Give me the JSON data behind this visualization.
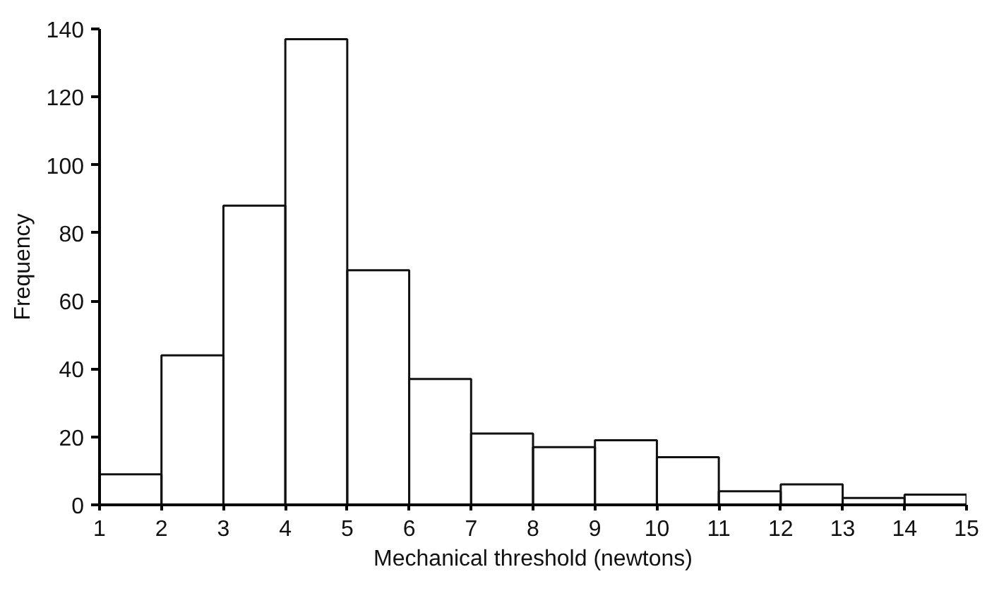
{
  "chart_data": {
    "type": "histogram",
    "xlabel": "Mechanical threshold (newtons)",
    "ylabel": "Frequency",
    "bins": [
      1,
      2,
      3,
      4,
      5,
      6,
      7,
      8,
      9,
      10,
      11,
      12,
      13,
      14,
      15
    ],
    "values": [
      9,
      44,
      88,
      137,
      69,
      37,
      21,
      17,
      19,
      14,
      4,
      6,
      2,
      3
    ],
    "color": "#111111",
    "xlim": [
      1,
      15
    ],
    "xticks": [
      1,
      2,
      3,
      4,
      5,
      6,
      7,
      8,
      9,
      10,
      11,
      12,
      13,
      14,
      15
    ],
    "ylim": [
      0,
      140
    ],
    "yticks": [
      0,
      20,
      40,
      60,
      80,
      100,
      120,
      140
    ],
    "grid": false
  }
}
